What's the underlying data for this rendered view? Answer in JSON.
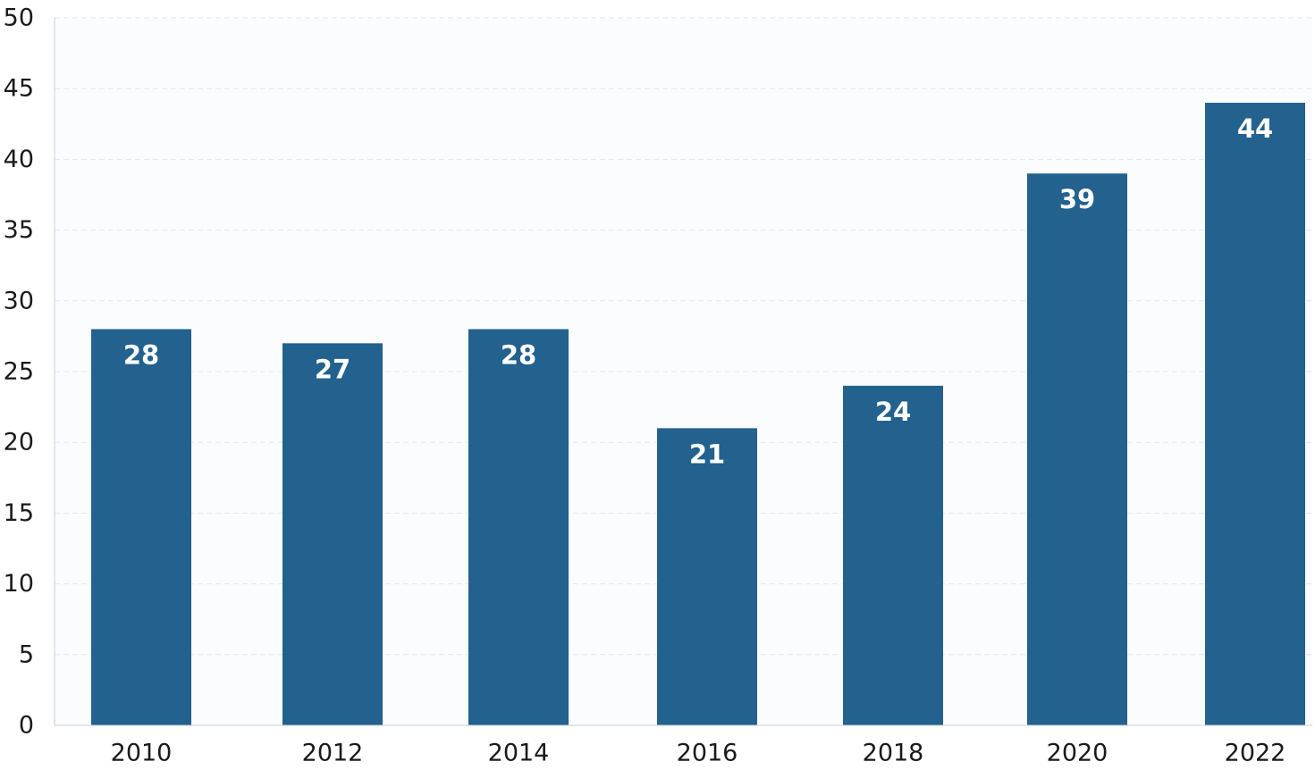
{
  "chart_data": {
    "type": "bar",
    "categories": [
      "2010",
      "2012",
      "2014",
      "2016",
      "2018",
      "2020",
      "2022"
    ],
    "values": [
      28,
      27,
      28,
      21,
      24,
      39,
      44
    ],
    "data_labels": [
      "28",
      "27",
      "28",
      "21",
      "24",
      "39",
      "44"
    ],
    "title": "",
    "xlabel": "",
    "ylabel": "",
    "ylim": [
      0,
      50
    ],
    "yticks": [
      "0",
      "5",
      "10",
      "15",
      "20",
      "25",
      "30",
      "35",
      "40",
      "45",
      "50"
    ],
    "grid": true,
    "legend": "none",
    "colors": {
      "bar": "#23618e",
      "plot_background": "#fbfcfd",
      "grid": "#e3e6ea",
      "axis": "#c8ccd1",
      "label": "#ffffff",
      "tick_text": "#1a1a1a"
    }
  }
}
